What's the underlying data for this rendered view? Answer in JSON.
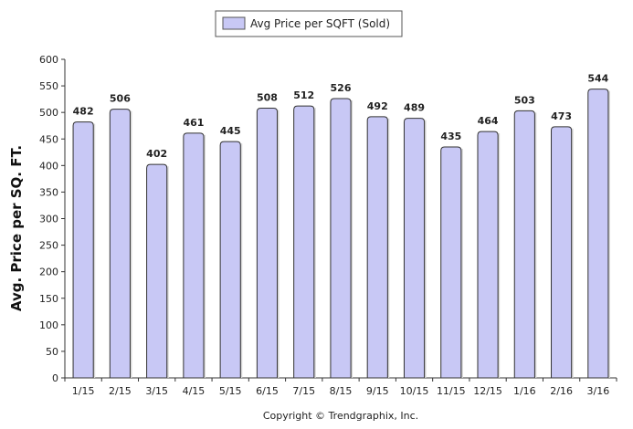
{
  "chart_data": {
    "type": "bar",
    "title": "",
    "xlabel": "",
    "ylabel": "Avg. Price per SQ. FT.",
    "ylim": [
      0,
      600
    ],
    "yticks": [
      0,
      50,
      100,
      150,
      200,
      250,
      300,
      350,
      400,
      450,
      500,
      550,
      600
    ],
    "grid": false,
    "legend_position": "top-center",
    "categories": [
      "1/15",
      "2/15",
      "3/15",
      "4/15",
      "5/15",
      "6/15",
      "7/15",
      "8/15",
      "9/15",
      "10/15",
      "11/15",
      "12/15",
      "1/16",
      "2/16",
      "3/16"
    ],
    "series": [
      {
        "name": "Avg Price per SQFT (Sold)",
        "color": "#c8c8f5",
        "values": [
          482,
          506,
          402,
          461,
          445,
          508,
          512,
          526,
          492,
          489,
          435,
          464,
          503,
          473,
          544
        ]
      }
    ]
  },
  "footer": {
    "copyright": "Copyright © Trendgraphix, Inc."
  }
}
